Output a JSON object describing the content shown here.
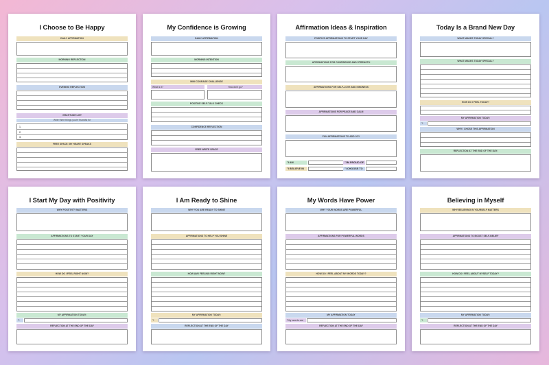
{
  "colors": {
    "yellow": "#efe2bd",
    "green": "#c9e8d2",
    "blue": "#c9d8ee",
    "purple": "#ddcbea"
  },
  "pages": [
    {
      "title": "I Choose to Be Happy",
      "sections": {
        "daily": "DAILY AFFIRMATION",
        "morning": "MORNING REFLECTION",
        "evening": "EVENING REFLECTION",
        "gratitude": "GRATITUDE LIST",
        "gratitude_sub": "Write three things you're thankful for",
        "free": "FREE SPACE: MY HEART SPEAKS"
      },
      "gratitude_numbers": [
        "1.",
        "2.",
        "3."
      ]
    },
    {
      "title": "My Confidence is Growing",
      "sections": {
        "daily": "DAILY AFFIRMATION",
        "morning": "MORNING INTENTION",
        "mini": "MINI COURAGE CHALLENGE",
        "what": "What is it?",
        "how": "How did it go?",
        "selftalk": "POSITIVE SELF-TALK CHECK",
        "confidence": "CONFIDENCE REFLECTION",
        "free": "FREE WRITE SPACE"
      }
    },
    {
      "title": "Affirmation Ideas & Inspiration",
      "sections": {
        "start": "POSITIVE AFFIRMATIONS TO START YOUR DAY",
        "confidence": "AFFIRMATIONS FOR CONFIDENCE AND STRENGTH",
        "selflove": "AFFIRMATIONS FOR SELF-LOVE AND KINDNESS",
        "peace": "AFFIRMATIONS FOR PEACE AND CALM",
        "fun": "FUN AFFIRMATIONS TO ADD JOY"
      },
      "prompts": {
        "iam": "\"I AM",
        "proud": "\"I'M PROUD OF",
        "believe": "\"I BELIEVE IN",
        "choose": "\"I CHOOSE TO"
      }
    },
    {
      "title": "Today Is a Brand New Day",
      "sections": {
        "special1": "WHAT MAKES TODAY SPECIAL?",
        "special2": "WHAT MAKES TODAY SPECIAL?",
        "feel": "HOW DO I FEEL TODAY?",
        "affirmation": "MY AFFIRMATION TODAY:",
        "iam": "\"I am",
        "why": "WHY I CHOSE THIS AFFIRMATION",
        "reflection": "REFLECTION AT THE END OF THE DAY:"
      }
    },
    {
      "title": "I Start My Day with Positivity",
      "sections": {
        "why": "WHY POSITIVITY MATTERS",
        "affirm": "AFFIRMATIONS TO START YOUR DAY",
        "feel": "HOW DO I FEEL RIGHT NOW?",
        "today": "MY AFFIRMATION TODAY:",
        "iam": "\"I am",
        "reflection": "REFLECTION AT THE END OF THE DAY"
      }
    },
    {
      "title": "I Am Ready to Shine",
      "sections": {
        "why": "WHY YOU ARE READY TO SHINE",
        "affirm": "AFFIRMATIONS TO HELP YOU SHINE",
        "feel": "HOW AM I FEELING RIGHT NOW?",
        "today": "MY AFFIRMATION TODAY:",
        "iam": "\"I am",
        "reflection": "REFLECTION AT THE END OF THE DAY"
      }
    },
    {
      "title": "My Words Have Power",
      "sections": {
        "why": "WHY YOUR WORDS ARE POWERFUL",
        "affirm": "AFFIRMATIONS FOR POWERFUL WORDS",
        "feel": "HOW DO I FEEL ABOUT MY WORDS TODAY?",
        "today": "MY AFFIRMATION TODAY",
        "iam": "\"My words are",
        "reflection": "REFLECTION AT THE END OF THE DAY"
      }
    },
    {
      "title": "Believing in Myself",
      "sections": {
        "why": "WHY BELIEVING IN YOURSELF MATTERS",
        "affirm": "AFFIRMATIONS TO BOOST SELF-BELIEF",
        "feel": "HOW DO I FEEL ABOUT MYSELF TODAY?",
        "today": "MY AFFIRMATION TODAY:",
        "iam": "\"I am",
        "reflection": "REFLECTION AT THE END OF THE DAY"
      }
    }
  ]
}
